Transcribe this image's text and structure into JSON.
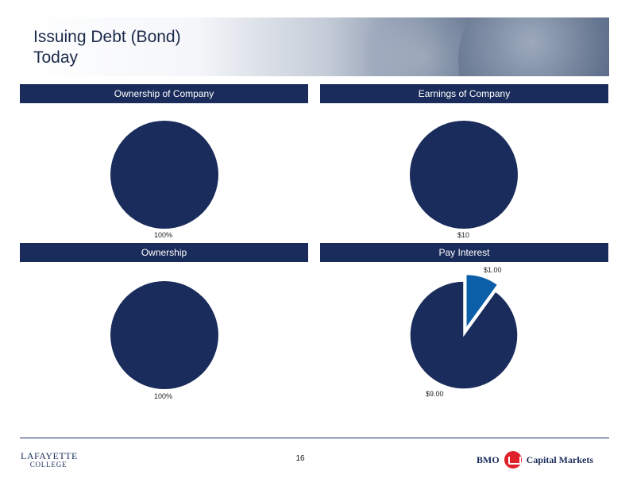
{
  "header": {
    "title_line1": "Issuing Debt (Bond)",
    "title_line2": "Today"
  },
  "colors": {
    "navy": "#1a2c5b",
    "blue": "#0a5fa8",
    "bar": "#1a2c5b"
  },
  "chart_data": [
    {
      "type": "pie",
      "title": "Ownership of Company",
      "slices": [
        {
          "value": 100,
          "label": "100%",
          "color": "#1a2c5b"
        }
      ]
    },
    {
      "type": "pie",
      "title": "Earnings of Company",
      "slices": [
        {
          "value": 10,
          "label": "$10",
          "color": "#1a2c5b"
        }
      ]
    },
    {
      "type": "pie",
      "title": "Ownership",
      "slices": [
        {
          "value": 100,
          "label": "100%",
          "color": "#1a2c5b"
        }
      ]
    },
    {
      "type": "pie",
      "title": "Pay Interest",
      "slices": [
        {
          "value": 1.0,
          "label": "$1.00",
          "color": "#0a5fa8",
          "exploded": true
        },
        {
          "value": 9.0,
          "label": "$9.00",
          "color": "#1a2c5b"
        }
      ]
    }
  ],
  "footer": {
    "page_number": "16",
    "lafayette_line1": "LAFAYETTE",
    "lafayette_line2": "COLLEGE",
    "bmo_left": "BMO",
    "bmo_right": "Capital Markets"
  }
}
